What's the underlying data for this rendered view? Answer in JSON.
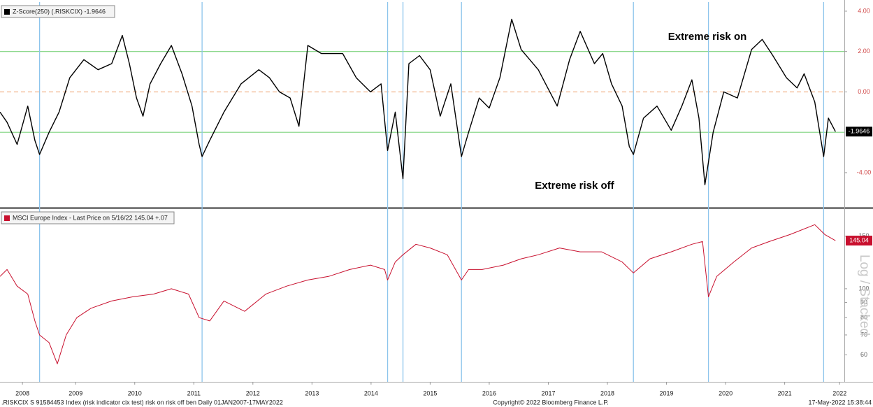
{
  "chart_data": [
    {
      "type": "line",
      "x": [
        2008.22,
        2008.34,
        2008.51,
        2008.69,
        2008.81,
        2008.89,
        2009.05,
        2009.22,
        2009.4,
        2009.64,
        2009.88,
        2010.11,
        2010.29,
        2010.41,
        2010.53,
        2010.64,
        2010.76,
        2010.94,
        2011.12,
        2011.3,
        2011.47,
        2011.59,
        2011.64,
        2011.77,
        2012.01,
        2012.3,
        2012.6,
        2012.78,
        2012.95,
        2013.13,
        2013.28,
        2013.43,
        2013.66,
        2014.02,
        2014.25,
        2014.49,
        2014.67,
        2014.78,
        2014.91,
        2015.04,
        2015.14,
        2015.32,
        2015.5,
        2015.67,
        2015.85,
        2016.03,
        2016.15,
        2016.33,
        2016.5,
        2016.68,
        2016.88,
        2017.04,
        2017.33,
        2017.65,
        2017.86,
        2018.04,
        2018.28,
        2018.42,
        2018.57,
        2018.75,
        2018.87,
        2018.94,
        2019.11,
        2019.34,
        2019.58,
        2019.76,
        2019.93,
        2020.05,
        2020.15,
        2020.29,
        2020.47,
        2020.7,
        2020.94,
        2021.12,
        2021.3,
        2021.53,
        2021.71,
        2021.83,
        2022.01,
        2022.16,
        2022.24,
        2022.36
      ],
      "series": [
        {
          "name": "Z-Score(250) (.RISKCIX) -1.9646",
          "color": "#000000",
          "values": [
            -1.0,
            -1.5,
            -2.6,
            -0.7,
            -2.4,
            -3.1,
            -2.0,
            -1.0,
            0.7,
            1.6,
            1.1,
            1.4,
            2.8,
            1.4,
            -0.3,
            -1.2,
            0.4,
            1.4,
            2.3,
            0.9,
            -0.7,
            -2.6,
            -3.2,
            -2.4,
            -1.0,
            0.4,
            1.1,
            0.7,
            0.0,
            -0.3,
            -1.7,
            2.3,
            1.9,
            1.9,
            0.7,
            0.0,
            0.4,
            -2.9,
            -1.0,
            -4.3,
            1.4,
            1.8,
            1.1,
            -1.2,
            0.4,
            -3.2,
            -2.0,
            -0.3,
            -0.8,
            0.7,
            3.6,
            2.1,
            1.1,
            -0.7,
            1.6,
            3.0,
            1.4,
            1.9,
            0.4,
            -0.7,
            -2.7,
            -3.1,
            -1.3,
            -0.7,
            -1.9,
            -0.7,
            0.6,
            -1.3,
            -4.6,
            -2.0,
            0.0,
            -0.3,
            2.1,
            2.6,
            1.8,
            0.7,
            0.2,
            0.9,
            -0.5,
            -3.2,
            -1.3,
            -1.9646
          ]
        }
      ],
      "xlim": [
        2008.22,
        2022.51
      ],
      "ylim": [
        -5.7,
        4.38
      ],
      "yticks": [
        {
          "value": 4,
          "label": "4.00"
        },
        {
          "value": 2,
          "label": "2.00"
        },
        {
          "value": 0,
          "label": "0.00"
        },
        {
          "value": -4,
          "label": "-4.00"
        }
      ],
      "ytick_color": "#d04848",
      "hlines": [
        {
          "value": 2,
          "color": "#7ed37e"
        },
        {
          "value": -2,
          "color": "#7ed37e"
        },
        {
          "value": 0,
          "color": "#f0a878",
          "dash": true
        }
      ],
      "event_lines": [
        2008.89,
        2011.64,
        2014.78,
        2015.04,
        2016.03,
        2018.94,
        2020.21,
        2022.16
      ],
      "event_color": "#8cc4ec",
      "annotations": [
        "Extreme risk on",
        "Extreme risk off"
      ]
    },
    {
      "type": "line",
      "x": [
        2008.22,
        2008.34,
        2008.51,
        2008.69,
        2008.81,
        2008.89,
        2009.05,
        2009.19,
        2009.34,
        2009.52,
        2009.76,
        2010.11,
        2010.47,
        2010.82,
        2011.12,
        2011.41,
        2011.59,
        2011.77,
        2012.01,
        2012.36,
        2012.72,
        2013.07,
        2013.43,
        2013.78,
        2014.14,
        2014.49,
        2014.73,
        2014.78,
        2014.91,
        2015.04,
        2015.26,
        2015.5,
        2015.79,
        2016.03,
        2016.15,
        2016.38,
        2016.74,
        2017.04,
        2017.33,
        2017.69,
        2018.04,
        2018.4,
        2018.75,
        2018.94,
        2019.22,
        2019.58,
        2019.93,
        2020.11,
        2020.21,
        2020.35,
        2020.64,
        2020.94,
        2021.24,
        2021.59,
        2022.01,
        2022.18,
        2022.36
      ],
      "series": [
        {
          "name": "MSCI Europe Index - Last Price on 5/16/22 145.04 +.07",
          "color": "#c8102e",
          "values": [
            110,
            116,
            102,
            96,
            78,
            70,
            66,
            56,
            70,
            80,
            86,
            91,
            94,
            96,
            100,
            96,
            80,
            78,
            91,
            84,
            96,
            102,
            107,
            110,
            116,
            120,
            116,
            107,
            123,
            130,
            141,
            137,
            130,
            107,
            116,
            116,
            120,
            126,
            130,
            137,
            133,
            133,
            123,
            113,
            126,
            133,
            141,
            144,
            94,
            110,
            123,
            137,
            144,
            152,
            164,
            152,
            145.04
          ]
        }
      ],
      "xlim": [
        2008.22,
        2022.51
      ],
      "ylim": [
        49,
        184
      ],
      "log_y": true,
      "yticks": [
        150,
        100,
        90,
        80,
        70,
        60
      ],
      "ytick_color": "#666666",
      "axis_caption": "Log / Stacked",
      "xticks": [
        {
          "value": 2008.6,
          "label": "2008"
        },
        {
          "value": 2009.5,
          "label": "2009"
        },
        {
          "value": 2010.5,
          "label": "2010"
        },
        {
          "value": 2011.5,
          "label": "2011"
        },
        {
          "value": 2012.5,
          "label": "2012"
        },
        {
          "value": 2013.5,
          "label": "2013"
        },
        {
          "value": 2014.5,
          "label": "2014"
        },
        {
          "value": 2015.5,
          "label": "2015"
        },
        {
          "value": 2016.5,
          "label": "2016"
        },
        {
          "value": 2017.5,
          "label": "2017"
        },
        {
          "value": 2018.5,
          "label": "2018"
        },
        {
          "value": 2019.5,
          "label": "2019"
        },
        {
          "value": 2020.5,
          "label": "2020"
        },
        {
          "value": 2021.5,
          "label": "2021"
        },
        {
          "value": 2022.43,
          "label": "2022"
        }
      ]
    }
  ],
  "footer": {
    "left": ".RISKCIX S 91584453 Index (risk indicator cix test) risk on risk off ben  Daily 01JAN2007-17MAY2022",
    "center": "Copyright© 2022 Bloomberg Finance L.P.",
    "right": "17-May-2022 15:38:44"
  }
}
